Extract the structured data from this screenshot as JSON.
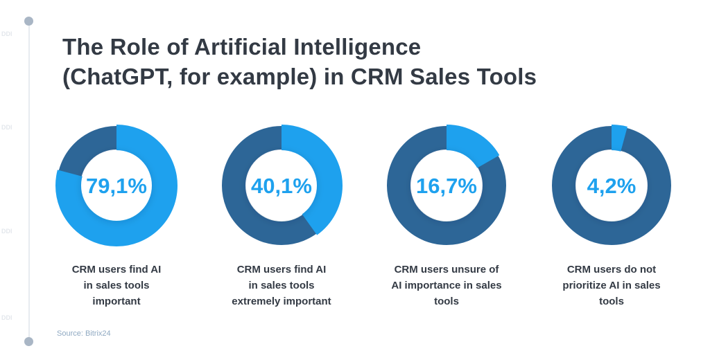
{
  "title_lines": [
    "The Role of Artificial Intelligence",
    "(ChatGPT, for example) in CRM Sales Tools"
  ],
  "colors": {
    "highlight": "#1ea1ee",
    "remainder": "#2d6697",
    "text": "#333a44",
    "source": "#8fa9c2"
  },
  "chart_data": {
    "type": "pie",
    "style": "donut",
    "title": "The Role of Artificial Intelligence (ChatGPT, for example) in CRM Sales Tools",
    "unit": "%",
    "items": [
      {
        "value": 79.1,
        "label": "79,1%",
        "caption": [
          "CRM users find AI",
          "in sales tools",
          "important"
        ]
      },
      {
        "value": 40.1,
        "label": "40,1%",
        "caption": [
          "CRM users find AI",
          "in sales tools",
          "extremely important"
        ]
      },
      {
        "value": 16.7,
        "label": "16,7%",
        "caption": [
          "CRM users unsure of",
          "AI importance in sales",
          "tools"
        ]
      },
      {
        "value": 4.2,
        "label": "4,2%",
        "caption": [
          "CRM users do not",
          "prioritize AI in sales",
          "tools"
        ]
      }
    ]
  },
  "source": "Source: Bitrix24",
  "watermark_text": "DDI"
}
